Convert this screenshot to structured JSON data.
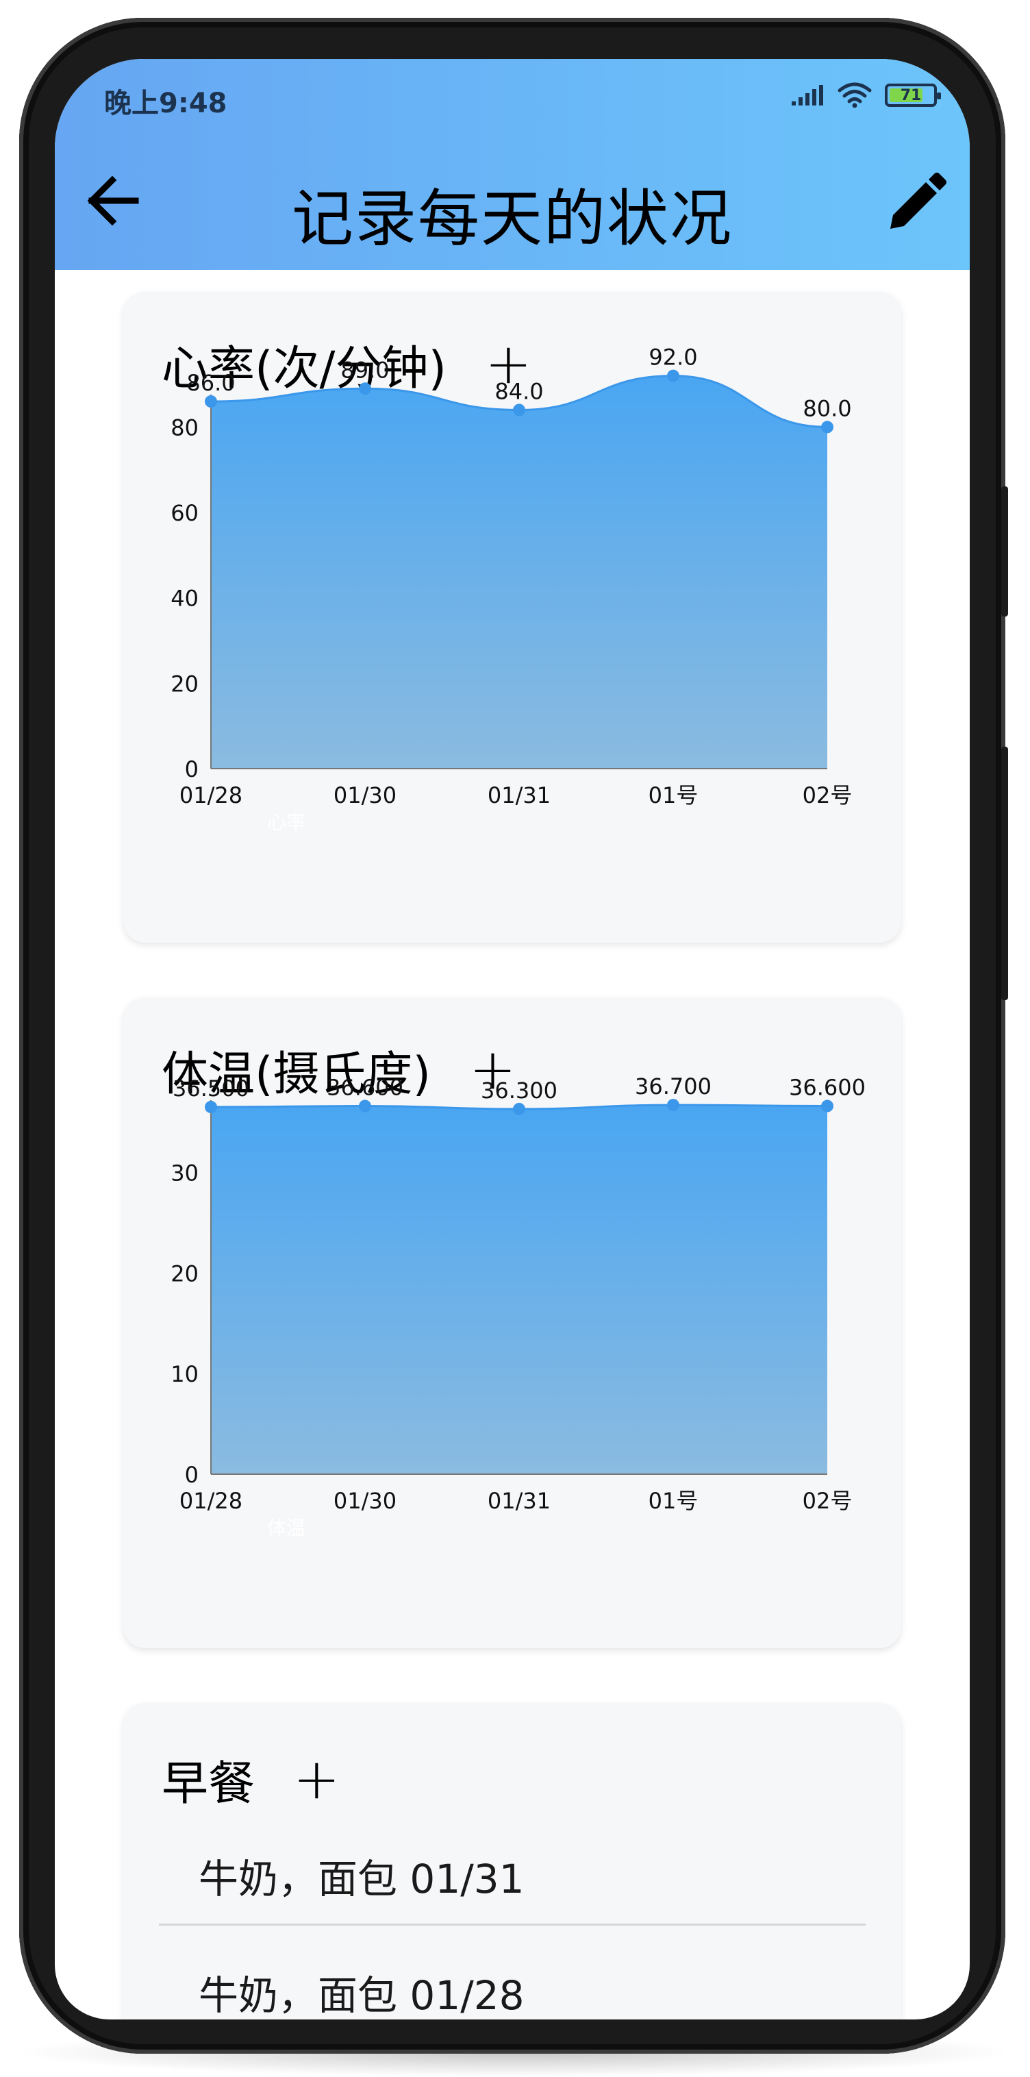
{
  "status_bar": {
    "time": "晚上9:48",
    "battery": "71",
    "icons": [
      "signal-icon",
      "wifi-icon",
      "battery-icon"
    ]
  },
  "app_bar": {
    "title": "记录每天的状况",
    "back_icon": "arrow-left-icon",
    "edit_icon": "pencil-icon"
  },
  "colors": {
    "appbar_start": "#66a6f2",
    "appbar_end": "#6cc5fb",
    "series_line": "#3b97ea",
    "area_top": "#4aa6f2",
    "area_bottom": "#8bbbe0"
  },
  "cards": {
    "heart_rate": {
      "title": "心率(次/分钟)",
      "add_label": "+"
    },
    "temperature": {
      "title": "体温(摄氏度)",
      "add_label": "+"
    },
    "breakfast": {
      "title": "早餐",
      "add_label": "+",
      "items": [
        "牛奶，面包 01/31",
        "牛奶，面包 01/28"
      ]
    }
  },
  "chart_data": [
    {
      "type": "area",
      "categories": [
        "01/28",
        "01/30",
        "01/31",
        "01号",
        "02号"
      ],
      "series": [
        {
          "name": "心率",
          "values": [
            86.0,
            89.0,
            84.0,
            92.0,
            80.0
          ]
        }
      ],
      "value_labels": [
        "86.0",
        "89.0",
        "84.0",
        "92.0",
        "80.0"
      ],
      "yticks": [
        "0",
        "20",
        "40",
        "60",
        "80"
      ],
      "ylim": [
        0,
        86
      ],
      "grid": false,
      "legend": "bottom-left"
    },
    {
      "type": "area",
      "categories": [
        "01/28",
        "01/30",
        "01/31",
        "01号",
        "02号"
      ],
      "series": [
        {
          "name": "体温",
          "values": [
            36.5,
            36.6,
            36.3,
            36.7,
            36.6
          ]
        }
      ],
      "value_labels": [
        "36.500",
        "36.600",
        "36.300",
        "36.700",
        "36.600"
      ],
      "yticks": [
        "0",
        "10",
        "20",
        "30"
      ],
      "ylim": [
        0,
        36.5
      ],
      "grid": false,
      "legend": "bottom-left"
    }
  ]
}
